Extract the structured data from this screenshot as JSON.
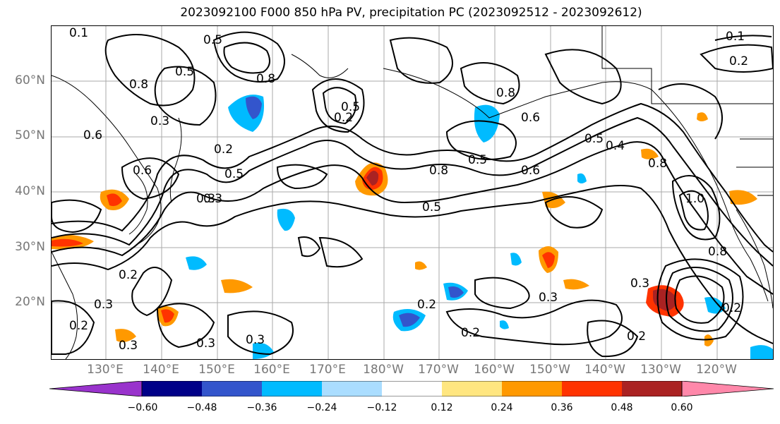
{
  "title": "2023092100 F000 850 hPa PV, precipitation PC (2023092512 - 2023092612)",
  "lat_labels": [
    "60°N",
    "50°N",
    "40°N",
    "30°N",
    "20°N"
  ],
  "lon_labels": [
    "130°E",
    "140°E",
    "150°E",
    "160°E",
    "170°E",
    "180°W",
    "170°W",
    "160°W",
    "150°W",
    "140°W",
    "130°W",
    "120°W"
  ],
  "colorbar": {
    "tick_labels": [
      "−0.60",
      "−0.48",
      "−0.36",
      "−0.24",
      "−0.12",
      "0.12",
      "0.24",
      "0.36",
      "0.48",
      "0.60"
    ],
    "colors": [
      "#9933cc",
      "#000088",
      "#3355cc",
      "#00bbff",
      "#aaddff",
      "#ffffff",
      "#ffe680",
      "#ff9900",
      "#ff3300",
      "#aa2222",
      "#ff88aa"
    ]
  },
  "contour_labels": [
    "0.1",
    "0.5",
    "0.8",
    "0.3",
    "0.5",
    "0.6",
    "0.2",
    "0.3",
    "0.6",
    "0.8",
    "0.5",
    "0.2",
    "0.8",
    "0.5",
    "0.6",
    "0.8",
    "0.5",
    "0.4",
    "0.5",
    "0.6",
    "0.8",
    "0.3",
    "0.5",
    "0.3",
    "0.2",
    "0.3",
    "0.2",
    "0.3",
    "0.3",
    "0.3",
    "0.2",
    "0.2",
    "0.3",
    "0.2",
    "0.2",
    "0.8",
    "0.1",
    "0.2",
    "1.0"
  ]
}
